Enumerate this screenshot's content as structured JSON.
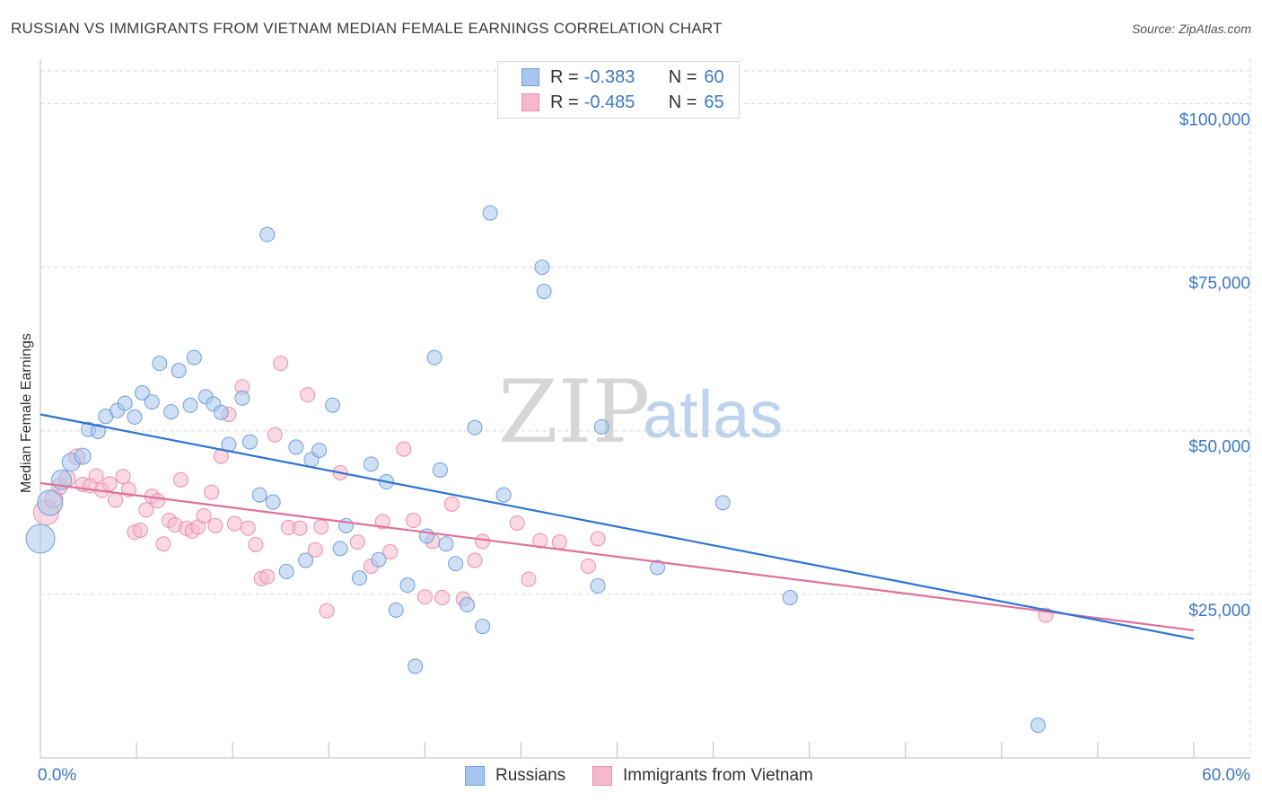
{
  "title": "RUSSIAN VS IMMIGRANTS FROM VIETNAM MEDIAN FEMALE EARNINGS CORRELATION CHART",
  "source": "Source: ZipAtlas.com",
  "watermark": {
    "zip": "ZIP",
    "atlas": "atlas"
  },
  "legend": {
    "russians": {
      "r_label": "R = ",
      "r_value": "-0.383",
      "n_label": "N = ",
      "n_value": "60"
    },
    "vietnam": {
      "r_label": "R = ",
      "r_value": "-0.485",
      "n_label": "N = ",
      "n_value": "65"
    }
  },
  "bottom_legend": {
    "russians": "Russians",
    "vietnam": "Immigrants from Vietnam"
  },
  "chart_data": {
    "type": "scatter",
    "title": "RUSSIAN VS IMMIGRANTS FROM VIETNAM MEDIAN FEMALE EARNINGS CORRELATION CHART",
    "xlabel": "",
    "ylabel": "Median Female Earnings",
    "xlim": [
      0,
      60
    ],
    "ylim": [
      0,
      105000
    ],
    "x_tick_labels": [
      "0.0%",
      "60.0%"
    ],
    "y_ticks": [
      25000,
      50000,
      75000,
      100000
    ],
    "y_tick_labels": [
      "$25,000",
      "$50,000",
      "$75,000",
      "$100,000"
    ],
    "grid": true,
    "colors": {
      "russians_fill": "#a7c6ed",
      "russians_stroke": "#6f9fdc",
      "russians_line": "#2f73d2",
      "vietnam_fill": "#f6b9cc",
      "vietnam_stroke": "#ea8fac",
      "vietnam_line": "#e0709a",
      "axis_text": "#3b78c9",
      "grid": "#d6d6d6"
    },
    "series": [
      {
        "name": "Russians",
        "trend": {
          "x": [
            0,
            60
          ],
          "y": [
            52500,
            18200
          ]
        },
        "points": [
          [
            0.0,
            33500,
            16
          ],
          [
            0.5,
            39000,
            14
          ],
          [
            1.1,
            42500,
            11
          ],
          [
            1.6,
            45200,
            10
          ],
          [
            2.2,
            46100,
            9
          ],
          [
            2.5,
            50200,
            8
          ],
          [
            3.0,
            49900,
            8
          ],
          [
            3.4,
            52200,
            8
          ],
          [
            4.0,
            53100,
            8
          ],
          [
            4.4,
            54200,
            8
          ],
          [
            4.9,
            52100,
            8
          ],
          [
            5.3,
            55800,
            8
          ],
          [
            5.8,
            54400,
            8
          ],
          [
            6.2,
            60300,
            8
          ],
          [
            6.8,
            52900,
            8
          ],
          [
            7.2,
            59200,
            8
          ],
          [
            7.8,
            53900,
            8
          ],
          [
            8.0,
            61200,
            8
          ],
          [
            8.6,
            55200,
            8
          ],
          [
            9.0,
            54100,
            8
          ],
          [
            9.4,
            52800,
            8
          ],
          [
            9.8,
            47900,
            8
          ],
          [
            10.5,
            55000,
            8
          ],
          [
            10.9,
            48300,
            8
          ],
          [
            11.4,
            40200,
            8
          ],
          [
            11.8,
            80000,
            8
          ],
          [
            12.1,
            39100,
            8
          ],
          [
            12.8,
            28500,
            8
          ],
          [
            13.3,
            47500,
            8
          ],
          [
            13.8,
            30200,
            8
          ],
          [
            14.1,
            45600,
            8
          ],
          [
            14.5,
            47000,
            8
          ],
          [
            15.2,
            53900,
            8
          ],
          [
            15.6,
            32000,
            8
          ],
          [
            15.9,
            35500,
            8
          ],
          [
            16.6,
            27500,
            8
          ],
          [
            17.2,
            44900,
            8
          ],
          [
            17.6,
            30300,
            8
          ],
          [
            18.0,
            42200,
            8
          ],
          [
            18.5,
            22600,
            8
          ],
          [
            19.1,
            26400,
            8
          ],
          [
            19.5,
            14000,
            8
          ],
          [
            20.1,
            33900,
            8
          ],
          [
            20.5,
            61200,
            8
          ],
          [
            20.8,
            44000,
            8
          ],
          [
            21.1,
            32700,
            8
          ],
          [
            21.6,
            29700,
            8
          ],
          [
            22.2,
            23400,
            8
          ],
          [
            22.6,
            50500,
            8
          ],
          [
            23.0,
            20100,
            8
          ],
          [
            23.4,
            83300,
            8
          ],
          [
            24.1,
            40200,
            8
          ],
          [
            26.1,
            75000,
            8
          ],
          [
            26.2,
            71300,
            8
          ],
          [
            29.0,
            26300,
            8
          ],
          [
            29.2,
            50600,
            8
          ],
          [
            32.1,
            29100,
            8
          ],
          [
            35.5,
            39000,
            8
          ],
          [
            39.0,
            24500,
            8
          ],
          [
            51.9,
            5000,
            8
          ]
        ]
      },
      {
        "name": "Immigrants from Vietnam",
        "trend": {
          "x": [
            0,
            60
          ],
          "y": [
            42000,
            19500
          ]
        },
        "points": [
          [
            0.3,
            37500,
            14
          ],
          [
            0.7,
            39600,
            10
          ],
          [
            1.0,
            41500,
            9
          ],
          [
            1.4,
            42700,
            9
          ],
          [
            1.9,
            46000,
            9
          ],
          [
            2.2,
            41800,
            8
          ],
          [
            2.6,
            41600,
            8
          ],
          [
            2.9,
            43100,
            8
          ],
          [
            3.2,
            40900,
            8
          ],
          [
            3.6,
            41900,
            8
          ],
          [
            3.9,
            39400,
            8
          ],
          [
            4.3,
            43000,
            8
          ],
          [
            4.6,
            41000,
            8
          ],
          [
            4.9,
            34500,
            8
          ],
          [
            5.2,
            34800,
            8
          ],
          [
            5.5,
            37900,
            8
          ],
          [
            5.8,
            40000,
            8
          ],
          [
            6.1,
            39300,
            8
          ],
          [
            6.4,
            32700,
            8
          ],
          [
            6.7,
            36300,
            8
          ],
          [
            7.0,
            35600,
            8
          ],
          [
            7.3,
            42500,
            8
          ],
          [
            7.6,
            35100,
            8
          ],
          [
            7.9,
            34700,
            8
          ],
          [
            8.2,
            35300,
            8
          ],
          [
            8.5,
            37000,
            8
          ],
          [
            8.9,
            40600,
            8
          ],
          [
            9.1,
            35500,
            8
          ],
          [
            9.4,
            46100,
            8
          ],
          [
            9.8,
            52500,
            8
          ],
          [
            10.1,
            35800,
            8
          ],
          [
            10.5,
            56700,
            8
          ],
          [
            10.8,
            35100,
            8
          ],
          [
            11.2,
            32600,
            8
          ],
          [
            11.5,
            27400,
            8
          ],
          [
            11.8,
            27700,
            8
          ],
          [
            12.2,
            49400,
            8
          ],
          [
            12.5,
            60300,
            8
          ],
          [
            12.9,
            35200,
            8
          ],
          [
            13.5,
            35100,
            8
          ],
          [
            13.9,
            55500,
            8
          ],
          [
            14.3,
            31800,
            8
          ],
          [
            14.6,
            35300,
            8
          ],
          [
            14.9,
            22500,
            8
          ],
          [
            15.6,
            43600,
            8
          ],
          [
            16.5,
            33000,
            8
          ],
          [
            17.2,
            29300,
            8
          ],
          [
            17.8,
            36100,
            8
          ],
          [
            18.2,
            31500,
            8
          ],
          [
            18.9,
            47200,
            8
          ],
          [
            19.4,
            36300,
            8
          ],
          [
            20.0,
            24600,
            8
          ],
          [
            20.4,
            33100,
            8
          ],
          [
            20.9,
            24500,
            8
          ],
          [
            21.4,
            38800,
            8
          ],
          [
            22.0,
            24300,
            8
          ],
          [
            22.6,
            30200,
            8
          ],
          [
            23.0,
            33100,
            8
          ],
          [
            24.8,
            35900,
            8
          ],
          [
            25.4,
            27300,
            8
          ],
          [
            26.0,
            33200,
            8
          ],
          [
            27.0,
            33000,
            8
          ],
          [
            28.5,
            29300,
            8
          ],
          [
            29.0,
            33500,
            8
          ],
          [
            52.3,
            21800,
            8
          ]
        ]
      }
    ]
  }
}
